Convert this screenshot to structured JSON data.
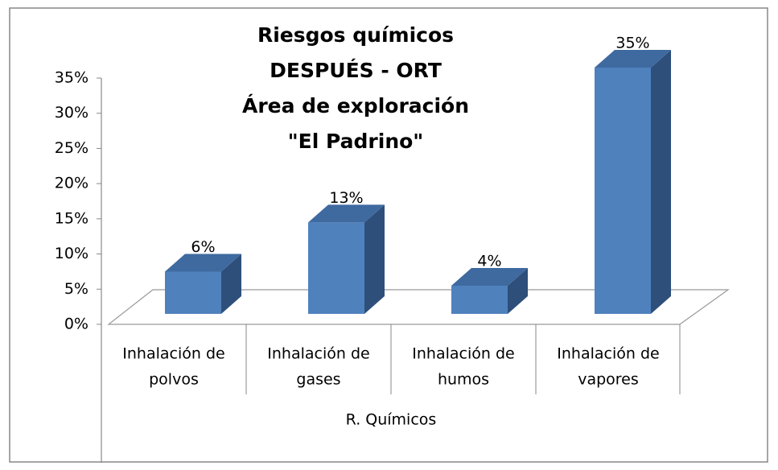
{
  "chart_data": {
    "type": "bar3d",
    "title": [
      "Riesgos químicos",
      "DESPUÉS - ORT",
      "Área de exploración",
      "\"El Padrino\""
    ],
    "categories": [
      [
        "Inhalación de",
        "polvos"
      ],
      [
        "Inhalación de",
        "gases"
      ],
      [
        "Inhalación de",
        "humos"
      ],
      [
        "Inhalación de",
        "vapores"
      ]
    ],
    "group_label": "R. Químicos",
    "values": [
      6,
      13,
      4,
      35
    ],
    "value_labels": [
      "6%",
      "13%",
      "4%",
      "35%"
    ],
    "color": "#4f81bd",
    "ylim": [
      0,
      35
    ],
    "yticks": [
      {
        "value": 0,
        "label": "0%"
      },
      {
        "value": 5,
        "label": "5%"
      },
      {
        "value": 10,
        "label": "10%"
      },
      {
        "value": 15,
        "label": "15%"
      },
      {
        "value": 20,
        "label": "20%"
      },
      {
        "value": 25,
        "label": "25%"
      },
      {
        "value": 30,
        "label": "30%"
      },
      {
        "value": 35,
        "label": "35%"
      }
    ]
  }
}
